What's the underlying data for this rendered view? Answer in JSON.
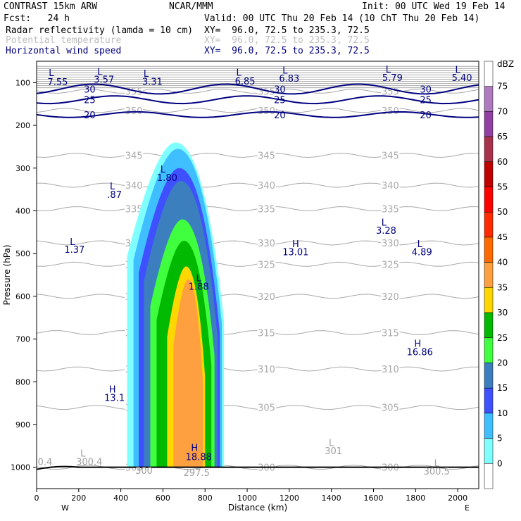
{
  "header": {
    "model": "CONTRAST 15km ARW",
    "org": "NCAR/MMM",
    "init": "Init: 00 UTC Wed 19 Feb 14",
    "fcst": "Fcst:   24 h",
    "valid": "Valid: 00 UTC Thu 20 Feb 14 (10 ChT Thu 20 Feb 14)",
    "field1": "Radar reflectivity (lamda = 10 cm)",
    "field1_xy": "XY=  96.0, 72.5 to 235.3, 72.5",
    "field2": "Potential temperature",
    "field2_xy": "XY=  96.0, 72.5 to 235.3, 72.5",
    "field3": "Horizontal wind speed",
    "field3_xy": "XY=  96.0, 72.5 to 235.3, 72.5"
  },
  "colors": {
    "reflectivity_scale": [
      "#ffffff",
      "#80ffff",
      "#3fbfff",
      "#3f50ff",
      "#3c7fbf",
      "#3fff3f",
      "#00b900",
      "#ffd700",
      "#ffa040",
      "#ff6a00",
      "#ff2a00",
      "#ff0000",
      "#c00000",
      "#a8324b",
      "#9040a0",
      "#b07ac0"
    ],
    "theta": "#a9a9a9",
    "wind": "#000080",
    "ground": "#000000"
  },
  "chart_data": {
    "type": "heatmap",
    "description": "Vertical cross-section: radar reflectivity (color fill), potential temperature (gray contours) and horizontal wind speed (navy contours)",
    "xlabel": "Distance (km)",
    "ylabel": "Pressure (hPa)",
    "xlim": [
      0,
      2100
    ],
    "ylim": [
      1050,
      50
    ],
    "x_ticks": [
      0,
      200,
      400,
      600,
      800,
      1000,
      1200,
      1400,
      1600,
      1800,
      2000
    ],
    "y_ticks": [
      100,
      200,
      300,
      400,
      500,
      600,
      700,
      800,
      900,
      1000
    ],
    "x_end_labels": {
      "left": "W",
      "right": "E"
    },
    "colorbar": {
      "unit": "dBZ",
      "levels": [
        0,
        5,
        10,
        15,
        20,
        25,
        30,
        35,
        40,
        45,
        50,
        55,
        60,
        65,
        70,
        75
      ]
    },
    "reflectivity_bands": [
      {
        "dbz": 5,
        "x": [
          430,
          890
        ],
        "p_top": 240
      },
      {
        "dbz": 10,
        "x": [
          460,
          880
        ],
        "p_top": 255
      },
      {
        "dbz": 15,
        "x": [
          485,
          870
        ],
        "p_top": 300
      },
      {
        "dbz": 20,
        "x": [
          510,
          860
        ],
        "p_top": 330
      },
      {
        "dbz": 25,
        "x": [
          540,
          845
        ],
        "p_top": 420
      },
      {
        "dbz": 30,
        "x": [
          570,
          830
        ],
        "p_top": 470
      },
      {
        "dbz": 35,
        "x": [
          620,
          800
        ],
        "p_top": 530
      },
      {
        "dbz": 40,
        "x": [
          650,
          790
        ],
        "p_top": 560
      }
    ],
    "theta_contours": [
      {
        "label": "300",
        "x": [
          0,
          2100
        ],
        "p": [
          1000,
          1000
        ]
      },
      {
        "label": "305",
        "x": [
          0,
          2100
        ],
        "p": [
          860,
          860
        ]
      },
      {
        "label": "310",
        "x": [
          0,
          2100
        ],
        "p": [
          770,
          770
        ]
      },
      {
        "label": "315",
        "x": [
          0,
          2100
        ],
        "p": [
          685,
          685
        ]
      },
      {
        "label": "320",
        "x": [
          0,
          2100
        ],
        "p": [
          600,
          600
        ]
      },
      {
        "label": "325",
        "x": [
          0,
          2100
        ],
        "p": [
          525,
          525
        ]
      },
      {
        "label": "330",
        "x": [
          0,
          2100
        ],
        "p": [
          475,
          475
        ]
      },
      {
        "label": "335",
        "x": [
          0,
          2100
        ],
        "p": [
          395,
          395
        ]
      },
      {
        "label": "340",
        "x": [
          0,
          2100
        ],
        "p": [
          340,
          340
        ]
      },
      {
        "label": "345",
        "x": [
          0,
          2100
        ],
        "p": [
          270,
          270
        ]
      },
      {
        "label": "350",
        "x": [
          0,
          2100
        ],
        "p": [
          165,
          165
        ]
      },
      {
        "label": "355",
        "x": [
          0,
          2100
        ],
        "p": [
          120,
          120
        ]
      }
    ],
    "wind_contours": [
      {
        "label": "20",
        "x": [
          0,
          2100
        ],
        "p": [
          175,
          175
        ]
      },
      {
        "label": "25",
        "x": [
          0,
          2100
        ],
        "p": [
          140,
          140
        ]
      },
      {
        "label": "30",
        "x": [
          0,
          2100
        ],
        "p": [
          115,
          115
        ]
      }
    ],
    "annotations": [
      {
        "text": "L",
        "x": 70,
        "p": 85
      },
      {
        "text": "7.55",
        "x": 100,
        "p": 106
      },
      {
        "text": "L",
        "x": 300,
        "p": 82
      },
      {
        "text": "3.57",
        "x": 320,
        "p": 100
      },
      {
        "text": "L",
        "x": 520,
        "p": 86
      },
      {
        "text": "3.31",
        "x": 550,
        "p": 105
      },
      {
        "text": "L",
        "x": 960,
        "p": 84
      },
      {
        "text": "6.85",
        "x": 990,
        "p": 104
      },
      {
        "text": "L",
        "x": 1180,
        "p": 79
      },
      {
        "text": "6.83",
        "x": 1200,
        "p": 98
      },
      {
        "text": "L",
        "x": 1670,
        "p": 76
      },
      {
        "text": "5.79",
        "x": 1690,
        "p": 96
      },
      {
        "text": "L",
        "x": 2000,
        "p": 77
      },
      {
        "text": "5.40",
        "x": 2020,
        "p": 96
      },
      {
        "text": "L",
        "x": 360,
        "p": 350
      },
      {
        "text": ".87",
        "x": 370,
        "p": 370
      },
      {
        "text": "L",
        "x": 600,
        "p": 310
      },
      {
        "text": "1.80",
        "x": 620,
        "p": 330
      },
      {
        "text": "L",
        "x": 170,
        "p": 480
      },
      {
        "text": "1.37",
        "x": 180,
        "p": 498
      },
      {
        "text": "L",
        "x": 1650,
        "p": 435
      },
      {
        "text": "3.28",
        "x": 1660,
        "p": 454
      },
      {
        "text": "H",
        "x": 1230,
        "p": 485
      },
      {
        "text": "13.01",
        "x": 1230,
        "p": 504
      },
      {
        "text": "L",
        "x": 1820,
        "p": 485
      },
      {
        "text": "4.89",
        "x": 1830,
        "p": 504
      },
      {
        "text": "L",
        "x": 770,
        "p": 565
      },
      {
        "text": "1.88",
        "x": 770,
        "p": 585
      },
      {
        "text": "H",
        "x": 1810,
        "p": 718
      },
      {
        "text": "16.86",
        "x": 1820,
        "p": 738
      },
      {
        "text": "H",
        "x": 360,
        "p": 825
      },
      {
        "text": "13.1",
        "x": 370,
        "p": 845
      },
      {
        "text": "H",
        "x": 750,
        "p": 962
      },
      {
        "text": "18.88",
        "x": 770,
        "p": 983
      },
      {
        "text": "L",
        "x": 220,
        "p": 975
      },
      {
        "text": "300.4",
        "x": 250,
        "p": 995
      },
      {
        "text": "L",
        "x": 1400,
        "p": 950
      },
      {
        "text": "301",
        "x": 1410,
        "p": 969
      },
      {
        "text": "L",
        "x": 1900,
        "p": 998
      },
      {
        "text": "300.5",
        "x": 1900,
        "p": 1017
      },
      {
        "text": "0.4",
        "x": 40,
        "p": 995
      },
      {
        "text": "297.5",
        "x": 760,
        "p": 1020
      },
      {
        "text": "300",
        "x": 510,
        "p": 1015
      }
    ],
    "grid": false
  }
}
